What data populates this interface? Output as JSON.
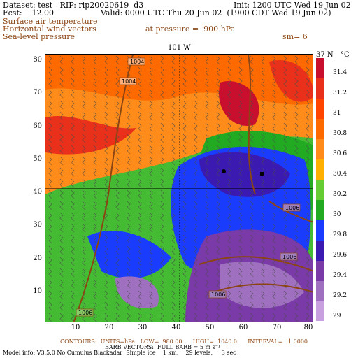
{
  "header": {
    "dataset": "Dataset: test   RIP: rip20020619  d3",
    "init": "Init: 1200 UTC Wed 19 Jun 02",
    "fcst": "Fcst:    12.00",
    "valid": "Valid: 0000 UTC Thu 20 Jun 02  (1900 CDT Wed 19 Jun 02)",
    "field1": "Surface air temperature",
    "field2": "Horizontal wind vectors",
    "field3": "Sea-level pressure",
    "pressure": "at pressure =  900 hPa",
    "sm": "sm= 6"
  },
  "map": {
    "top_label": "101 W",
    "right_label": "37 N",
    "unit": "°C",
    "x_ticks": [
      "10",
      "20",
      "30",
      "40",
      "50",
      "60",
      "70",
      "80"
    ],
    "y_ticks": [
      "80",
      "70",
      "60",
      "50",
      "40",
      "30",
      "20",
      "10"
    ],
    "contour_labels": [
      "1004",
      "1004",
      "1006",
      "1006",
      "1006",
      "1006"
    ]
  },
  "colorbar": {
    "labels": [
      "31.4",
      "31.2",
      "31",
      "30.8",
      "30.6",
      "30.4",
      "30.2",
      "30",
      "29.8",
      "29.6",
      "29.4",
      "29.2",
      "29"
    ],
    "colors": [
      "#c8102e",
      "#e8301a",
      "#ff4500",
      "#ff6a00",
      "#ff8c1a",
      "#ffb000",
      "#66cc33",
      "#22aa22",
      "#1a3cff",
      "#3a1ab0",
      "#7a3aa8",
      "#a070c0",
      "#c8a0e0"
    ]
  },
  "footer": {
    "line1": "CONTOURS:  UNITS=hPa   LOW=  980.00      HIGH=  1040.0      INTERVAL=   1.0000",
    "line2": "BARB VECTORS:  FULL BARB = 5 m s⁻¹",
    "line3": "Model info: V3.5.0 No Cumulus Blackadar  Simple ice    1 km,    29 levels,     3 sec"
  }
}
